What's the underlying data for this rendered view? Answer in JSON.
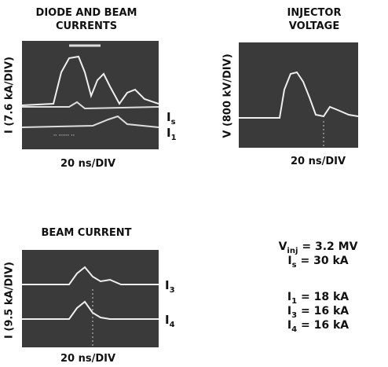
{
  "panels": [
    {
      "title": [
        "DIODE AND BEAM",
        "CURRENTS"
      ],
      "y_label": "I (7.6 kA/DIV)",
      "x_label": "20 ns/DIV",
      "traces": [
        {
          "symbol": "I",
          "sub": "s"
        },
        {
          "symbol": "I",
          "sub": "1"
        }
      ]
    },
    {
      "title": [
        "INJECTOR",
        "VOLTAGE"
      ],
      "y_label": "V (800 kV/DIV)",
      "x_label": "20 ns/DIV",
      "traces": []
    },
    {
      "title": [
        "BEAM CURRENT"
      ],
      "y_label": "I (9.5 kA/DIV)",
      "x_label": "20 ns/DIV",
      "traces": [
        {
          "symbol": "I",
          "sub": "3"
        },
        {
          "symbol": "I",
          "sub": "4"
        }
      ]
    }
  ],
  "parameters": [
    {
      "symbol": "V",
      "sub": "inj",
      "rest": "= 3.2 MV"
    },
    {
      "symbol": "I",
      "sub": "s",
      "rest": "= 30 kA"
    },
    {
      "symbol": "I",
      "sub": "1",
      "rest": "= 18 kA"
    },
    {
      "symbol": "I",
      "sub": "3",
      "rest": "= 16 kA"
    },
    {
      "symbol": "I",
      "sub": "4",
      "rest": "= 16 kA"
    }
  ]
}
